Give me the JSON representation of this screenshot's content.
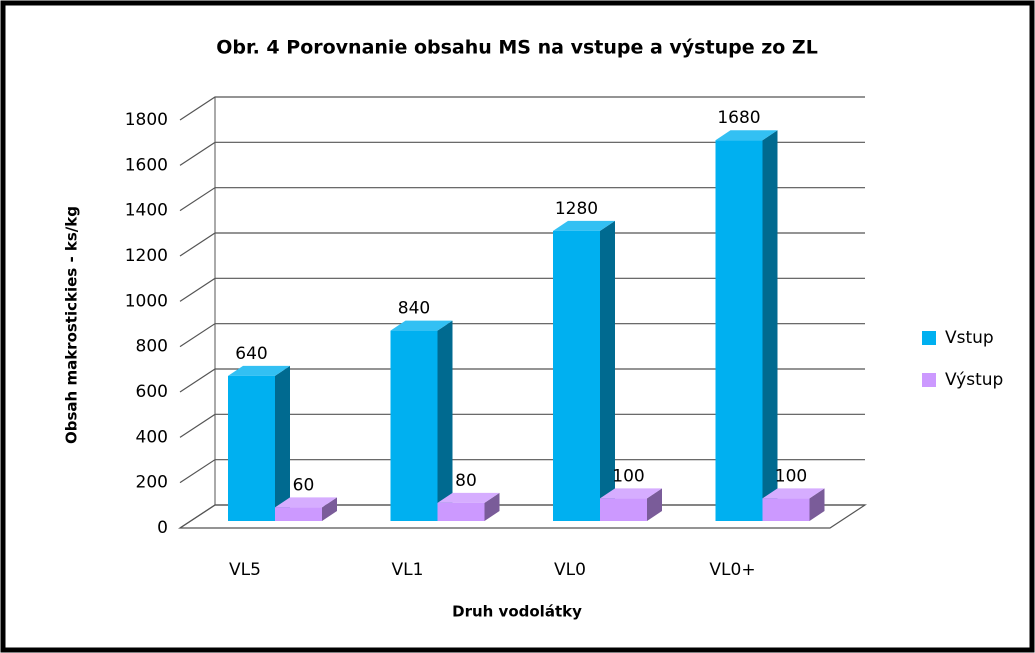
{
  "chart_data": {
    "type": "bar3d",
    "title": "Obr. 4 Porovnanie obsahu MS na vstupe a výstupe zo ZL",
    "x_label": "Druh vodolátky",
    "y_label": "Obsah makrostickies - ks/kg",
    "categories": [
      "VL5",
      "VL1",
      "VL0",
      "VL0+"
    ],
    "series": [
      {
        "name": "Vstup",
        "color": "#00b0f0",
        "values": [
          640,
          840,
          1280,
          1680
        ]
      },
      {
        "name": "Výstup",
        "color": "#cc99ff",
        "values": [
          60,
          80,
          100,
          100
        ]
      }
    ],
    "ylim": [
      0,
      1800
    ],
    "yticks": [
      0,
      200,
      400,
      600,
      800,
      1000,
      1200,
      1400,
      1600,
      1800
    ],
    "grid": true,
    "legend": "right"
  }
}
